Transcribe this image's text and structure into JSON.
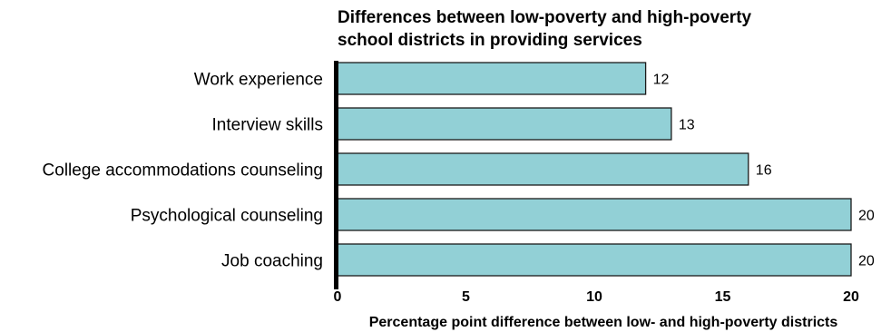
{
  "chart_data": {
    "type": "bar",
    "orientation": "horizontal",
    "title_lines": [
      "Differences between low-poverty and high-poverty",
      "school districts in providing services"
    ],
    "categories": [
      "Work experience",
      "Interview skills",
      "College accommodations counseling",
      "Psychological counseling",
      "Job coaching"
    ],
    "values": [
      12,
      13,
      16,
      20,
      20
    ],
    "data_labels": [
      "12",
      "13",
      "16",
      "20",
      "20"
    ],
    "xlabel": "Percentage point difference between low- and high-poverty districts",
    "ylabel": "",
    "xlim": [
      0,
      20
    ],
    "xticks": [
      0,
      5,
      10,
      15,
      20
    ],
    "xtick_labels": [
      "0",
      "5",
      "10",
      "15",
      "20"
    ],
    "grid": false,
    "legend": "none",
    "colors": {
      "bar_fill": "#92d0d6",
      "bar_stroke": "#1a1a1a",
      "axis": "#000000",
      "text": "#000000"
    }
  }
}
